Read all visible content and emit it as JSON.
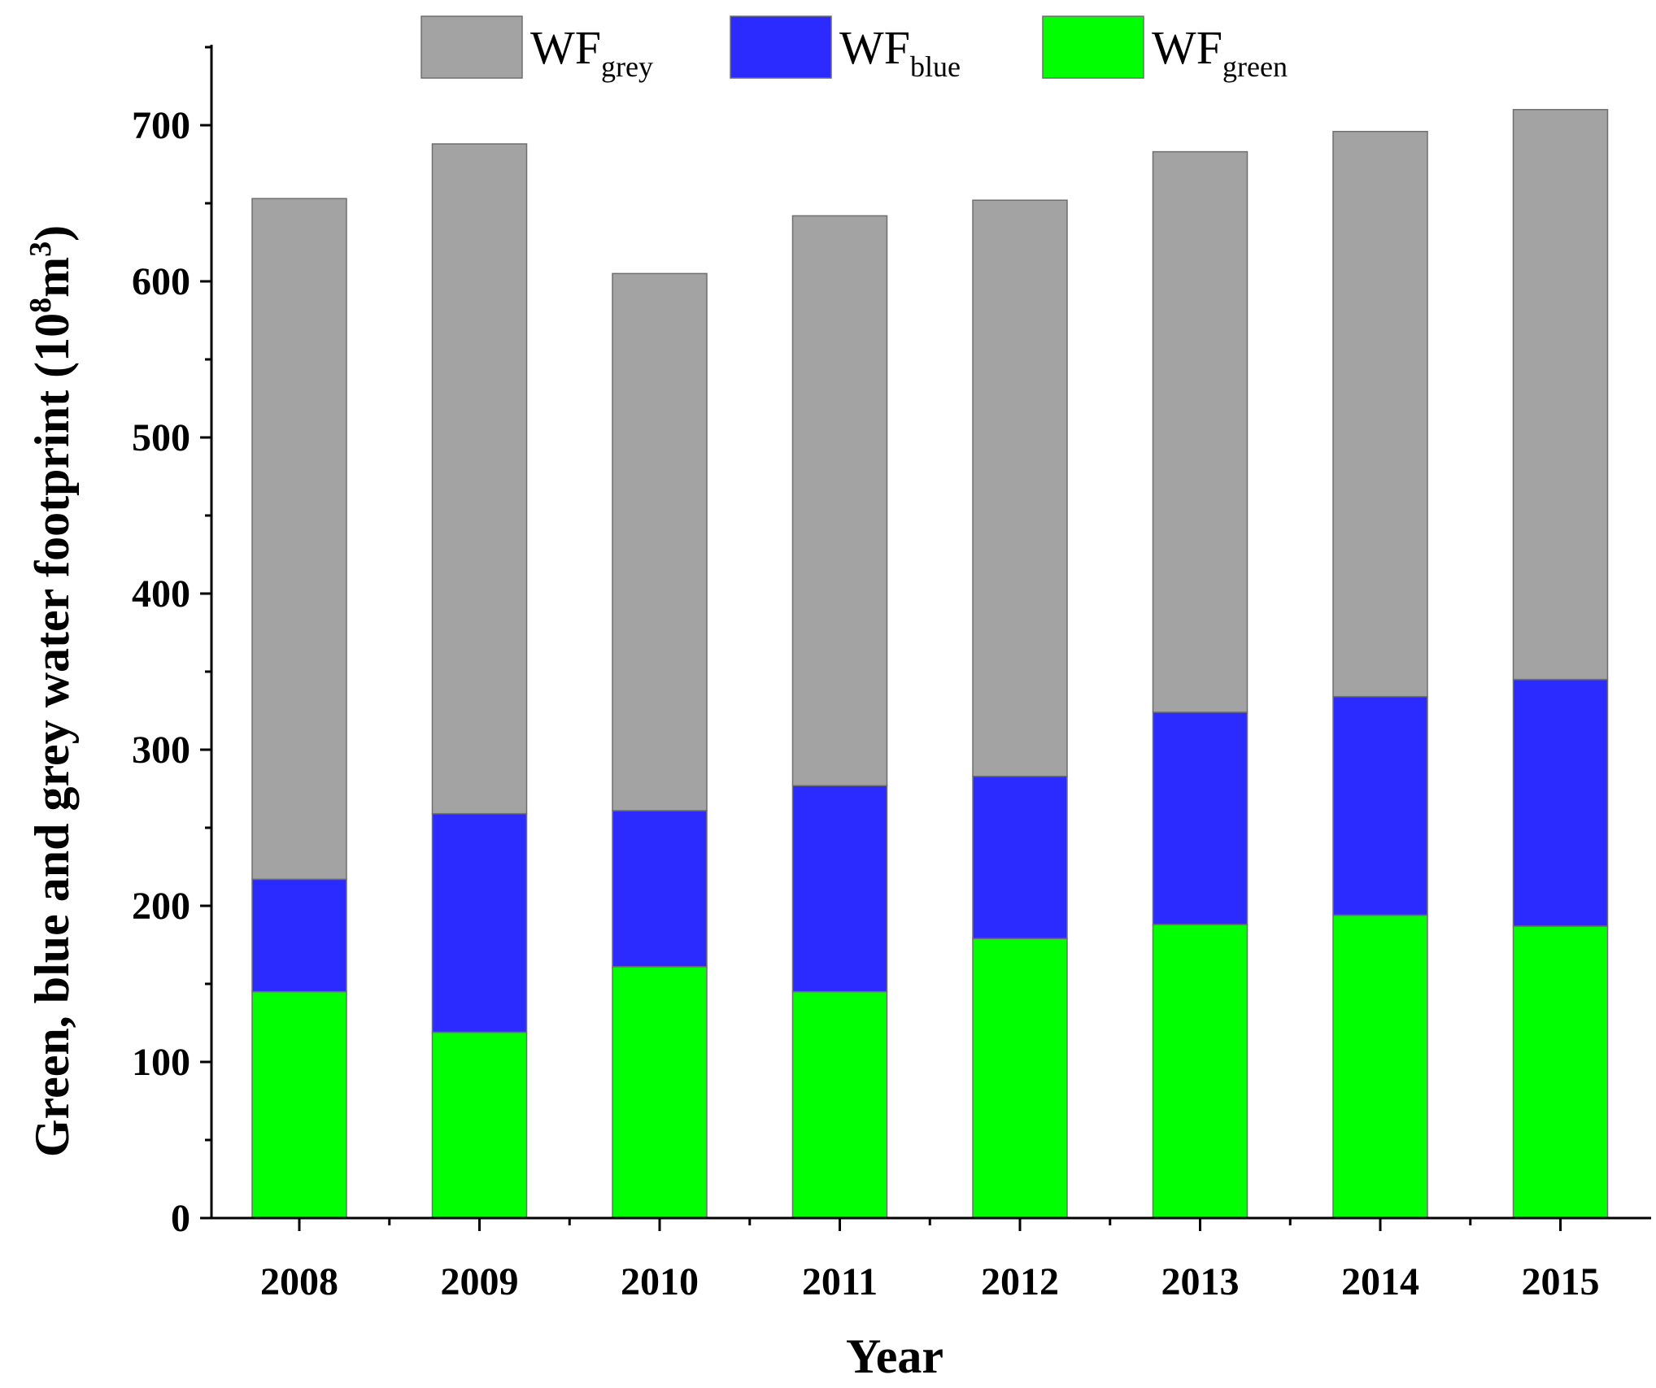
{
  "chart_data": {
    "type": "bar",
    "stacked": true,
    "title": "",
    "xlabel": "Year",
    "ylabel": {
      "text": "Green, blue and grey water footprint (10",
      "sup": "8",
      "unit": "m",
      "unit_sup": "3",
      "close": ")"
    },
    "categories": [
      "2008",
      "2009",
      "2010",
      "2011",
      "2012",
      "2013",
      "2014",
      "2015"
    ],
    "ylim": [
      0,
      750
    ],
    "yticks": [
      0,
      100,
      200,
      300,
      400,
      500,
      600,
      700
    ],
    "legend_position": "top-center",
    "series": [
      {
        "name": "WF",
        "sub": "green",
        "color": "#00ff00",
        "values": [
          145,
          119,
          161,
          145,
          179,
          188,
          194,
          187
        ]
      },
      {
        "name": "WF",
        "sub": "blue",
        "color": "#2b2bff",
        "values": [
          72,
          140,
          100,
          132,
          104,
          136,
          140,
          158
        ]
      },
      {
        "name": "WF",
        "sub": "grey",
        "color": "#a3a3a3",
        "values": [
          436,
          429,
          344,
          365,
          369,
          359,
          362,
          365
        ]
      }
    ],
    "legend_order": [
      "grey",
      "blue",
      "green"
    ]
  }
}
